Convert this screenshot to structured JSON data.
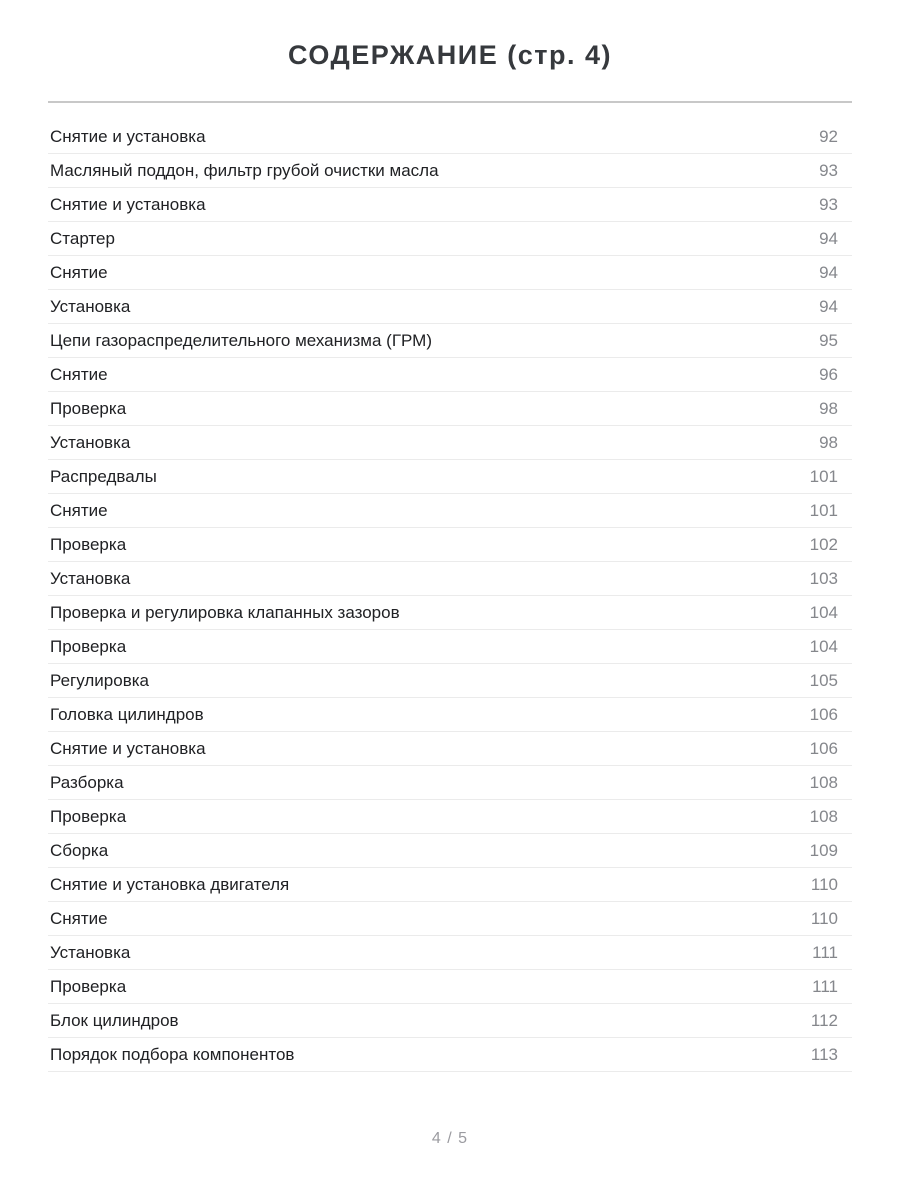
{
  "header": {
    "title": "СОДЕРЖАНИЕ (стр. 4)"
  },
  "toc": {
    "entries": [
      {
        "label": "Снятие и установка",
        "page": "92"
      },
      {
        "label": "Масляный поддон, фильтр грубой очистки масла",
        "page": "93"
      },
      {
        "label": "Снятие и установка",
        "page": "93"
      },
      {
        "label": "Стартер",
        "page": "94"
      },
      {
        "label": "Снятие",
        "page": "94"
      },
      {
        "label": "Установка",
        "page": "94"
      },
      {
        "label": "Цепи газораспределительного механизма (ГРМ)",
        "page": "95"
      },
      {
        "label": "Снятие",
        "page": "96"
      },
      {
        "label": "Проверка",
        "page": "98"
      },
      {
        "label": "Установка",
        "page": "98"
      },
      {
        "label": "Распредвалы",
        "page": "101"
      },
      {
        "label": "Снятие",
        "page": "101"
      },
      {
        "label": "Проверка",
        "page": "102"
      },
      {
        "label": "Установка",
        "page": "103"
      },
      {
        "label": "Проверка и регулировка клапанных зазоров",
        "page": "104"
      },
      {
        "label": "Проверка",
        "page": "104"
      },
      {
        "label": "Регулировка",
        "page": "105"
      },
      {
        "label": "Головка цилиндров",
        "page": "106"
      },
      {
        "label": "Снятие и установка",
        "page": "106"
      },
      {
        "label": "Разборка",
        "page": "108"
      },
      {
        "label": "Проверка",
        "page": "108"
      },
      {
        "label": "Сборка",
        "page": "109"
      },
      {
        "label": "Снятие и установка двигателя",
        "page": "110"
      },
      {
        "label": "Снятие",
        "page": "110"
      },
      {
        "label": "Установка",
        "page": "111"
      },
      {
        "label": "Проверка",
        "page": "111"
      },
      {
        "label": "Блок цилиндров",
        "page": "112"
      },
      {
        "label": "Порядок подбора компонентов",
        "page": "113"
      }
    ]
  },
  "footer": {
    "pagination": "4 / 5"
  },
  "colors": {
    "title_text": "#36393d",
    "row_text": "#202124",
    "page_number_text": "#85878c",
    "separator": "#ebebeb",
    "title_rule": "#c8c8c8",
    "footer_text": "#9b9ba0",
    "background": "#ffffff"
  }
}
